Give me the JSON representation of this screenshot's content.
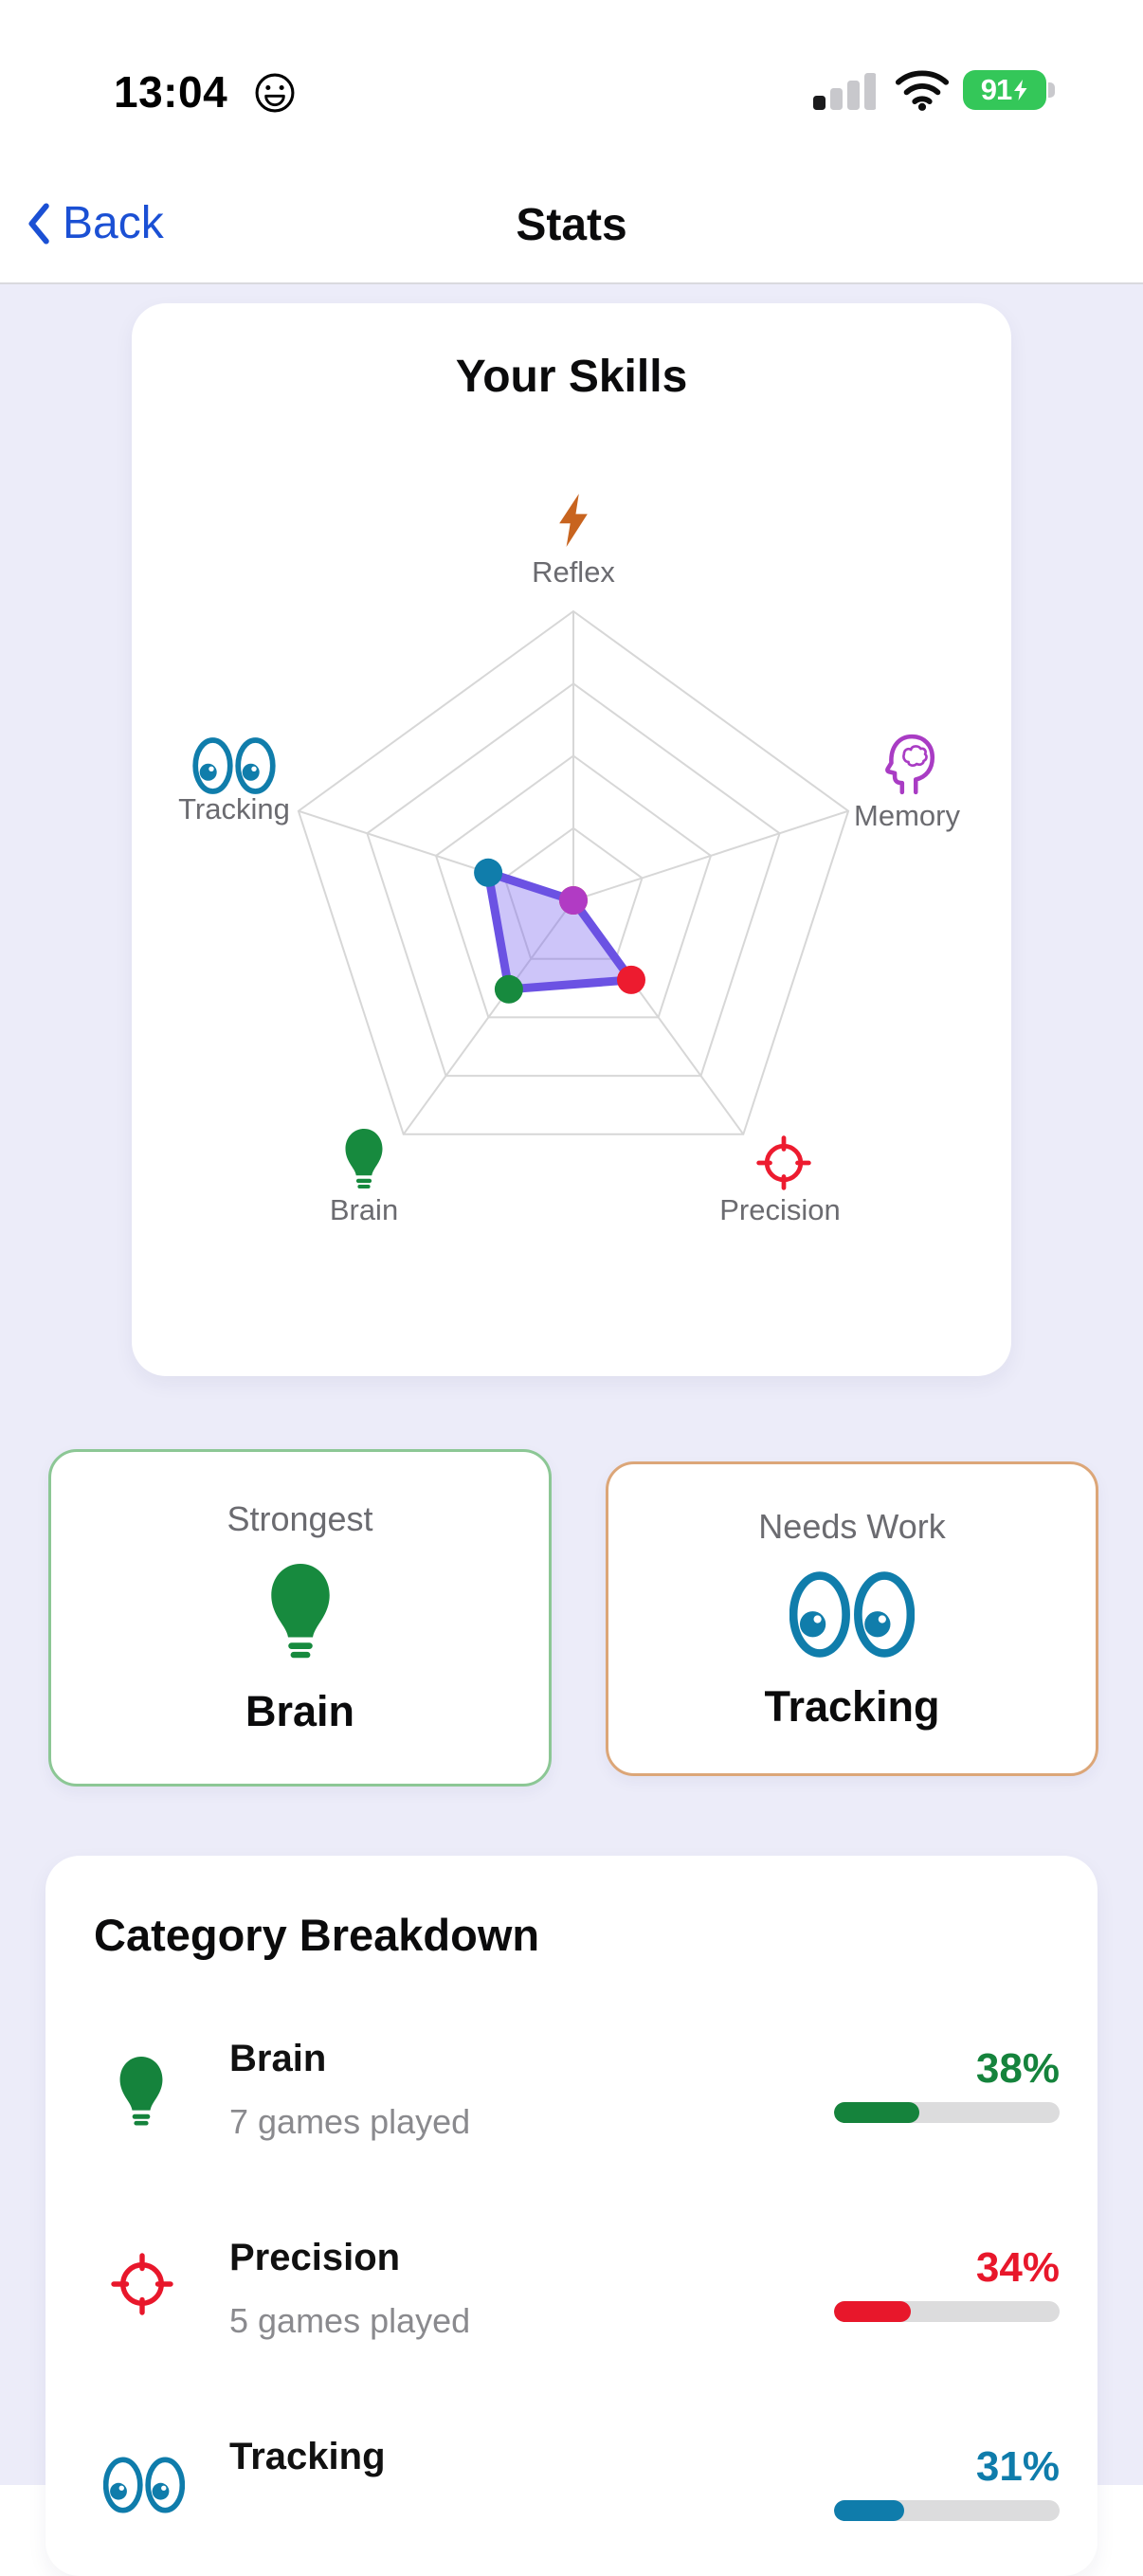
{
  "status_bar": {
    "time": "13:04",
    "emoji_icon": "grinning-face-icon",
    "signal_bars_filled": 1,
    "signal_bars_total": 4,
    "battery_percent": "91",
    "battery_charging": true,
    "battery_color": "#34c759"
  },
  "nav": {
    "back_label": "Back",
    "title": "Stats",
    "accent_color": "#1b50d4"
  },
  "skills_card": {
    "title": "Your Skills"
  },
  "chart_data": {
    "type": "radar",
    "title": "Your Skills",
    "categories": [
      "Reflex",
      "Memory",
      "Precision",
      "Brain",
      "Tracking"
    ],
    "values": [
      0,
      0,
      34,
      38,
      31
    ],
    "max": 100,
    "grid_levels": 4,
    "grid_on": true,
    "grid_color": "#d7d7d7",
    "series_fill": "rgba(124,103,238,0.38)",
    "series_stroke": "#6b52e3",
    "point_colors": [
      "#d2691e",
      "#b13bc4",
      "#ed1b2f",
      "#178a3e",
      "#107dab"
    ],
    "axis_icons": [
      "lightning-icon",
      "brain-head-icon",
      "target-icon",
      "lightbulb-icon",
      "eyes-icon"
    ],
    "axis_icon_colors": [
      "#c8641f",
      "#a93cc4",
      "#ed1b2f",
      "#178a3e",
      "#107dab"
    ],
    "axis_label_color": "#6b6b70"
  },
  "highlight_cards": [
    {
      "heading": "Strongest",
      "category": "Brain",
      "icon": "lightbulb-icon",
      "border_color": "#8cc795",
      "icon_color": "#178a3e"
    },
    {
      "heading": "Needs Work",
      "category": "Tracking",
      "icon": "eyes-icon",
      "border_color": "#dca678",
      "icon_color": "#107dab"
    }
  ],
  "breakdown": {
    "title": "Category Breakdown",
    "track_color": "#dcdcdd",
    "rows": [
      {
        "name": "Brain",
        "games": "7 games played",
        "percent": "38%",
        "value": 38,
        "color": "#15833c",
        "icon": "lightbulb-icon"
      },
      {
        "name": "Precision",
        "games": "5 games played",
        "percent": "34%",
        "value": 34,
        "color": "#e8172b",
        "icon": "target-icon"
      },
      {
        "name": "Tracking",
        "games": "",
        "percent": "31%",
        "value": 31,
        "color": "#0f7cab",
        "icon": "eyes-icon"
      }
    ]
  },
  "background": {
    "page": "#ffffff",
    "content": "#ececf9",
    "card": "#ffffff"
  }
}
